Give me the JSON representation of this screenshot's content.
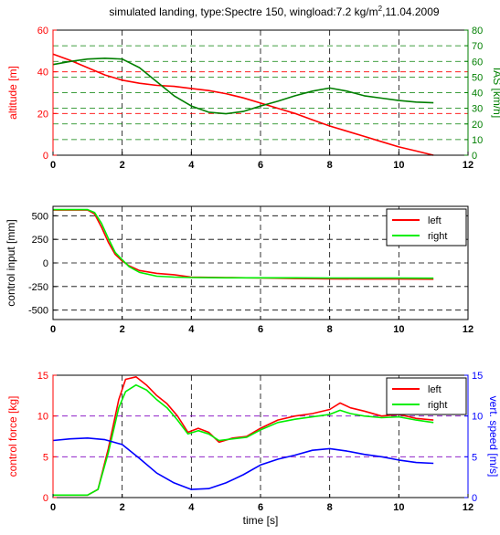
{
  "figure": {
    "title_main": "simulated landing, type:Spectre 150, wingload:7.2 kg/m",
    "title_sup": "2",
    "title_tail": ",11.04.2009"
  },
  "chart_data": [
    {
      "type": "line",
      "xlim": [
        0,
        12
      ],
      "xticks": [
        "0",
        "2",
        "4",
        "6",
        "8",
        "10",
        "12"
      ],
      "ylabel": "altitude [m]",
      "ylim": [
        0,
        60
      ],
      "yticks": [
        "0",
        "20",
        "40",
        "60"
      ],
      "ylabel_right": "IAS [km/h]",
      "ylim_right": [
        0,
        80
      ],
      "yticks_right": [
        "0",
        "10",
        "20",
        "30",
        "40",
        "50",
        "60",
        "70",
        "80"
      ],
      "grid": "dashed, colored by axis",
      "colors": {
        "left_axis": "#ff0000",
        "right_axis": "#007f00"
      },
      "series": [
        {
          "axis": "left",
          "x": [
            0,
            0.5,
            1,
            1.5,
            2,
            2.5,
            3,
            3.5,
            4,
            4.5,
            5,
            5.5,
            6,
            6.5,
            7,
            7.5,
            8,
            8.5,
            9,
            9.5,
            10,
            10.5,
            11
          ],
          "y": [
            48.5,
            45.5,
            42,
            38.5,
            36,
            34.5,
            33.5,
            33,
            32,
            31,
            29.5,
            27.5,
            25,
            22.5,
            20,
            17,
            14,
            11.5,
            9,
            6.5,
            4,
            2,
            0
          ]
        },
        {
          "axis": "right",
          "x": [
            0,
            0.5,
            1,
            1.5,
            2,
            2.5,
            3,
            3.5,
            4,
            4.5,
            5,
            5.5,
            6,
            6.5,
            7,
            7.5,
            8,
            8.5,
            9,
            9.5,
            10,
            10.5,
            11
          ],
          "y": [
            58,
            60,
            61.5,
            62,
            61.5,
            56,
            47,
            38,
            31.5,
            27.5,
            26.5,
            28,
            31.5,
            34.5,
            38,
            41,
            43,
            41,
            38,
            36.5,
            35,
            34,
            33.5
          ]
        }
      ]
    },
    {
      "type": "line",
      "xlim": [
        0,
        12
      ],
      "xticks": [
        "0",
        "2",
        "4",
        "6",
        "8",
        "10",
        "12"
      ],
      "ylabel": "control input [mm]",
      "ylim": [
        -600,
        600
      ],
      "yticks": [
        "-500",
        "-250",
        "0",
        "250",
        "500"
      ],
      "grid": "dashed",
      "legend": "top-right",
      "series": [
        {
          "name": "left",
          "color": "#ff0000",
          "x": [
            0,
            1.0,
            1.2,
            1.4,
            1.6,
            1.8,
            2.0,
            2.2,
            2.5,
            3.0,
            3.5,
            4.0,
            5.0,
            6.0,
            7.0,
            8.0,
            9.0,
            10.0,
            11.0
          ],
          "y": [
            560,
            560,
            520,
            380,
            220,
            90,
            20,
            -30,
            -80,
            -110,
            -125,
            -150,
            -155,
            -160,
            -165,
            -168,
            -170,
            -170,
            -172
          ]
        },
        {
          "name": "right",
          "color": "#00ee00",
          "x": [
            0,
            1.0,
            1.2,
            1.4,
            1.6,
            1.8,
            2.0,
            2.2,
            2.5,
            3.0,
            3.5,
            4.0,
            5.0,
            6.0,
            7.0,
            8.0,
            9.0,
            10.0,
            11.0
          ],
          "y": [
            565,
            565,
            535,
            420,
            260,
            110,
            35,
            -40,
            -100,
            -140,
            -150,
            -155,
            -158,
            -158,
            -158,
            -160,
            -160,
            -160,
            -162
          ]
        }
      ]
    },
    {
      "type": "line",
      "xlim": [
        0,
        12
      ],
      "xticks": [
        "0",
        "2",
        "4",
        "6",
        "8",
        "10",
        "12"
      ],
      "xlabel": "time [s]",
      "ylabel": "control force [kg]",
      "ylim": [
        0,
        15
      ],
      "yticks": [
        "0",
        "5",
        "10",
        "15"
      ],
      "ylabel_right": "vert. speed [m/s]",
      "ylim_right": [
        0,
        15
      ],
      "yticks_right": [
        "0",
        "5",
        "10",
        "15"
      ],
      "grid": "dashed",
      "legend": "top-right",
      "colors": {
        "left_axis": "#ff0000",
        "right_axis": "#0000ff"
      },
      "series": [
        {
          "name": "left",
          "axis": "left",
          "color": "#ff0000",
          "x": [
            0,
            1.0,
            1.3,
            1.6,
            1.9,
            2.1,
            2.4,
            2.7,
            3.0,
            3.3,
            3.6,
            3.9,
            4.2,
            4.5,
            4.8,
            5.2,
            5.6,
            6.0,
            6.5,
            7.0,
            7.5,
            8.0,
            8.3,
            8.6,
            9.0,
            9.5,
            10.0,
            10.5,
            11.0
          ],
          "y": [
            0.3,
            0.3,
            1.0,
            6.0,
            12.0,
            14.5,
            14.8,
            13.8,
            12.5,
            11.5,
            10.0,
            8.0,
            8.5,
            8.0,
            6.8,
            7.3,
            7.5,
            8.5,
            9.5,
            10.0,
            10.3,
            10.8,
            11.6,
            11.0,
            10.6,
            10.0,
            10.2,
            9.7,
            9.5
          ]
        },
        {
          "name": "right",
          "axis": "left",
          "color": "#00ee00",
          "x": [
            0,
            1.0,
            1.3,
            1.6,
            1.9,
            2.1,
            2.4,
            2.7,
            3.0,
            3.3,
            3.6,
            3.9,
            4.2,
            4.5,
            4.8,
            5.2,
            5.6,
            6.0,
            6.5,
            7.0,
            7.5,
            8.0,
            8.3,
            8.6,
            9.0,
            9.5,
            10.0,
            10.5,
            11.0
          ],
          "y": [
            0.3,
            0.3,
            1.0,
            5.5,
            11.0,
            13.0,
            13.8,
            13.2,
            12.0,
            11.0,
            9.5,
            7.8,
            8.2,
            7.8,
            7.0,
            7.2,
            7.4,
            8.3,
            9.2,
            9.6,
            9.9,
            10.2,
            10.7,
            10.3,
            10.0,
            9.8,
            9.9,
            9.5,
            9.2
          ]
        },
        {
          "name": "vert. speed",
          "axis": "right",
          "color": "#0000ff",
          "x": [
            0,
            0.5,
            1.0,
            1.5,
            2.0,
            2.5,
            3.0,
            3.5,
            4.0,
            4.5,
            5.0,
            5.5,
            6.0,
            6.5,
            7.0,
            7.5,
            8.0,
            8.5,
            9.0,
            9.5,
            10.0,
            10.5,
            11.0
          ],
          "y": [
            7.0,
            7.2,
            7.3,
            7.1,
            6.5,
            4.8,
            3.0,
            1.8,
            1.0,
            1.1,
            1.8,
            2.8,
            4.0,
            4.7,
            5.2,
            5.8,
            6.0,
            5.7,
            5.3,
            5.0,
            4.6,
            4.3,
            4.2
          ]
        }
      ]
    }
  ]
}
